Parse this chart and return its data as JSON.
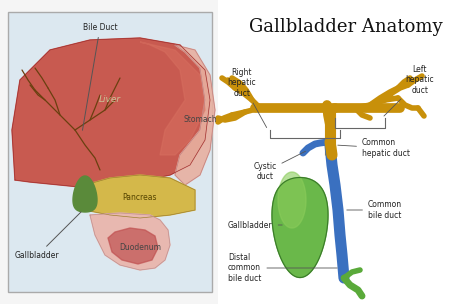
{
  "title": "Gallbladder Anatomy",
  "title_fontsize": 13,
  "bg_color": "#f5f5f5",
  "right_bg": "#ffffff",
  "left_box_border": "#aaaaaa",
  "labels": {
    "bile_duct": "Bile Duct",
    "liver": "Liver",
    "stomach": "Stomach",
    "pancreas": "Pancreas",
    "gallbladder_left": "Gallbladder",
    "duodenum": "Duodenum",
    "right_hepatic": "Right\nhepatic\nduct",
    "left_hepatic": "Left\nhepatic\nduct",
    "cystic_duct": "Cystic\nduct",
    "common_hepatic": "Common\nhepatic duct",
    "gallbladder_right": "Gallbladder",
    "common_bile": "Common\nbile duct",
    "distal_common": "Distal\ncommon\nbile duct"
  },
  "liver_color": "#c85a50",
  "liver_edge": "#a03030",
  "liver_highlight": "#d87060",
  "stomach_color": "#e8b0a0",
  "stomach_edge": "#c08080",
  "pancreas_color": "#d4b84a",
  "pancreas_edge": "#a08030",
  "gallbladder_small_color": "#5a8a3a",
  "duodenum_color": "#e8b8b0",
  "duodenum_edge": "#c09090",
  "duodenum_inner": "#c05050",
  "gallbladder_fill": "#6ab84a",
  "gallbladder_fill2": "#8acc5a",
  "gallbladder_edge": "#3a7a2a",
  "hepatic_color": "#c8900a",
  "hepatic_edge": "#a07000",
  "bile_duct_blue": "#3a70c0",
  "green_duct": "#5aaa3a",
  "duct_line_color": "#6a4010",
  "label_fontsize": 5.5,
  "label_color": "#222222",
  "arrow_color": "#555555"
}
